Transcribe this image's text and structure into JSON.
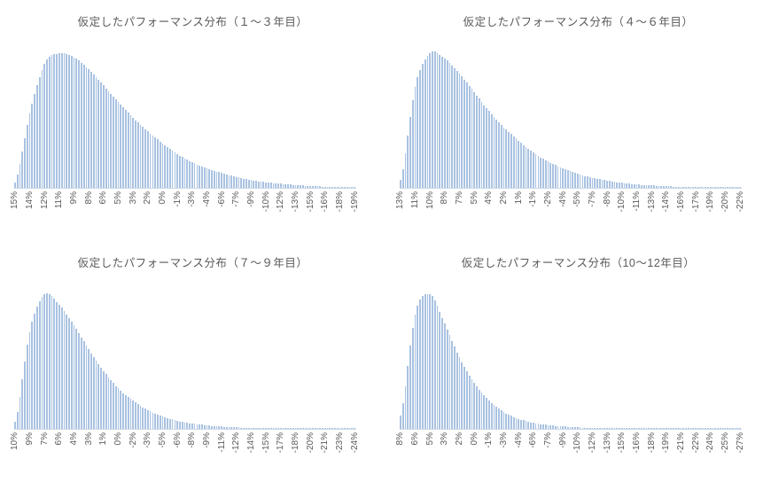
{
  "page": {
    "background": "#ffffff",
    "description": "2x2 grid of hypothetical performance distribution histograms"
  },
  "style": {
    "bar_color": "#a9c2e1",
    "axis_line_color": "#ccd7e5",
    "title_color": "#595959",
    "label_color": "#595959"
  },
  "chart_data": [
    {
      "type": "bar",
      "title": "仮定したパフォーマンス分布（１～３年目）",
      "xlabel": "",
      "ylabel": "",
      "grid": false,
      "legend": false,
      "y_axis_visible": false,
      "x_labels_rotated_degrees": 90,
      "x_descending_left_to_right": true,
      "bar_count": 139,
      "label_interval_bars": 6,
      "categories": [
        "15%",
        "14%",
        "12%",
        "11%",
        "9%",
        "8%",
        "6%",
        "5%",
        "3%",
        "2%",
        "0%",
        "-1%",
        "-3%",
        "-4%",
        "-6%",
        "-7%",
        "-9%",
        "-10%",
        "-12%",
        "-13%",
        "-15%",
        "-16%",
        "-18%",
        "-19%"
      ],
      "values": [
        0.04,
        0.55,
        0.92,
        1.0,
        0.97,
        0.88,
        0.76,
        0.64,
        0.52,
        0.42,
        0.33,
        0.25,
        0.19,
        0.145,
        0.11,
        0.08,
        0.058,
        0.042,
        0.03,
        0.021,
        0.014,
        0.009,
        0.006,
        0.004
      ],
      "values_note": "relative frequency heights (peak = 1.0) sampled at each labeled bin; no y-axis scale shown in source"
    },
    {
      "type": "bar",
      "title": "仮定したパフォーマンス分布（４～６年目）",
      "xlabel": "",
      "ylabel": "",
      "grid": false,
      "legend": false,
      "y_axis_visible": false,
      "x_labels_rotated_degrees": 90,
      "x_descending_left_to_right": true,
      "bar_count": 139,
      "label_interval_bars": 6,
      "categories": [
        "13%",
        "11%",
        "10%",
        "8%",
        "7%",
        "5%",
        "4%",
        "2%",
        "1%",
        "-1%",
        "-2%",
        "-4%",
        "-5%",
        "-7%",
        "-8%",
        "-10%",
        "-11%",
        "-13%",
        "-14%",
        "-16%",
        "-17%",
        "-19%",
        "-20%",
        "-22%"
      ],
      "values": [
        0.06,
        0.75,
        1.0,
        0.96,
        0.85,
        0.71,
        0.57,
        0.45,
        0.35,
        0.26,
        0.195,
        0.145,
        0.105,
        0.075,
        0.053,
        0.037,
        0.026,
        0.018,
        0.012,
        0.008,
        0.005,
        0.003,
        0.002,
        0.0015
      ],
      "values_note": "relative frequency heights (peak = 1.0) sampled at each labeled bin; no y-axis scale shown in source"
    },
    {
      "type": "bar",
      "title": "仮定したパフォーマンス分布（７～９年目）",
      "xlabel": "",
      "ylabel": "",
      "grid": false,
      "legend": false,
      "y_axis_visible": false,
      "x_labels_rotated_degrees": 90,
      "x_descending_left_to_right": true,
      "bar_count": 139,
      "label_interval_bars": 6,
      "categories": [
        "10%",
        "9%",
        "7%",
        "6%",
        "4%",
        "3%",
        "1%",
        "0%",
        "-2%",
        "-3%",
        "-5%",
        "-6%",
        "-8%",
        "-9%",
        "-11%",
        "-12%",
        "-14%",
        "-15%",
        "-17%",
        "-18%",
        "-20%",
        "-21%",
        "-23%",
        "-24%"
      ],
      "values": [
        0.05,
        0.72,
        1.0,
        0.92,
        0.77,
        0.59,
        0.43,
        0.3,
        0.21,
        0.14,
        0.092,
        0.06,
        0.04,
        0.026,
        0.017,
        0.011,
        0.007,
        0.005,
        0.003,
        0.002,
        0.0015,
        0.001,
        0.0008,
        0.0006
      ],
      "values_note": "relative frequency heights (peak = 1.0) sampled at each labeled bin; no y-axis scale shown in source"
    },
    {
      "type": "bar",
      "title": "仮定したパフォーマンス分布（10～12年目）",
      "xlabel": "",
      "ylabel": "",
      "grid": false,
      "legend": false,
      "y_axis_visible": false,
      "x_labels_rotated_degrees": 90,
      "x_descending_left_to_right": true,
      "bar_count": 139,
      "label_interval_bars": 6,
      "categories": [
        "8%",
        "6%",
        "5%",
        "3%",
        "2%",
        "0%",
        "-1%",
        "-3%",
        "-4%",
        "-6%",
        "-7%",
        "-9%",
        "-10%",
        "-12%",
        "-13%",
        "-15%",
        "-16%",
        "-18%",
        "-19%",
        "-21%",
        "-22%",
        "-24%",
        "-25%",
        "-27%"
      ],
      "values": [
        0.1,
        0.85,
        1.0,
        0.78,
        0.53,
        0.34,
        0.21,
        0.125,
        0.075,
        0.045,
        0.028,
        0.018,
        0.011,
        0.007,
        0.0045,
        0.003,
        0.002,
        0.0013,
        0.0009,
        0.0006,
        0.0004,
        0.0003,
        0.0002,
        0.0002
      ],
      "values_note": "relative frequency heights (peak = 1.0) sampled at each labeled bin; no y-axis scale shown in source"
    }
  ]
}
